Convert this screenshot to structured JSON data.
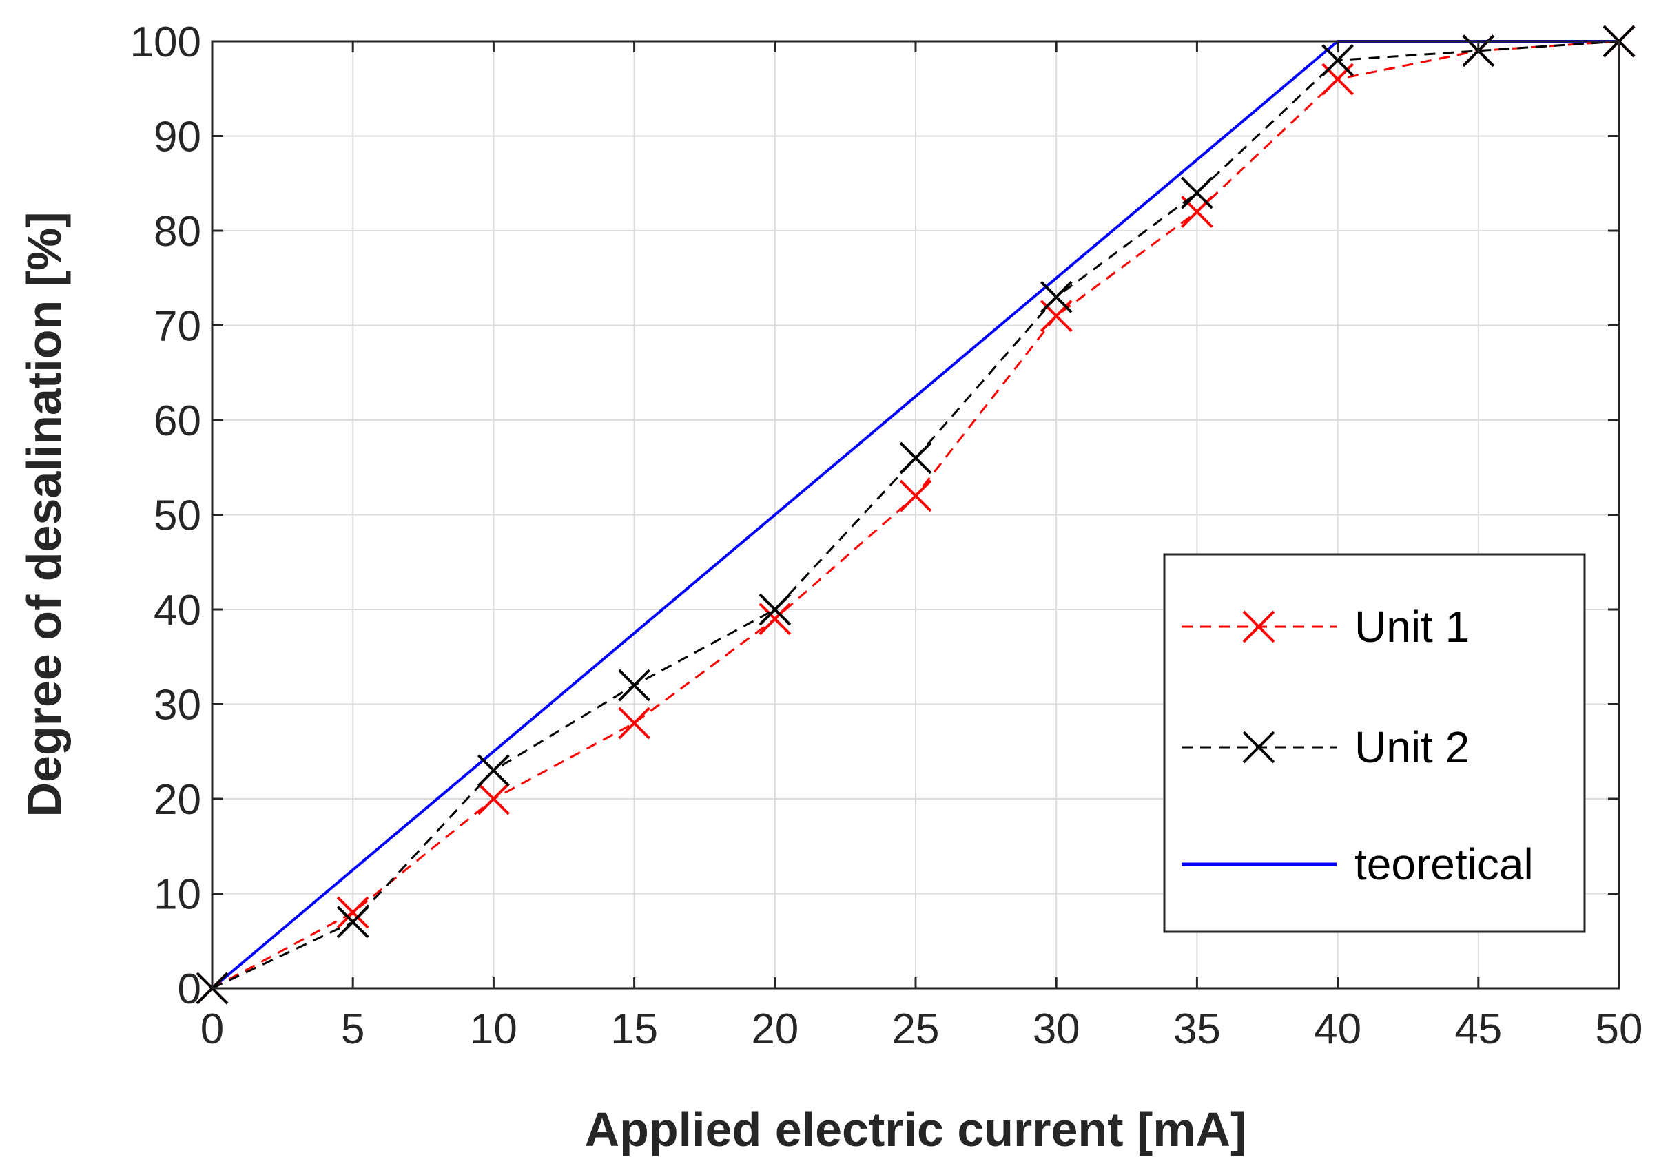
{
  "chart_data": {
    "type": "line",
    "title": "",
    "xlabel": "Applied electric current [mA]",
    "ylabel": "Degree of desalination [%]",
    "xlim": [
      0,
      50
    ],
    "ylim": [
      0,
      100
    ],
    "xticks": [
      0,
      5,
      10,
      15,
      20,
      25,
      30,
      35,
      40,
      45,
      50
    ],
    "yticks": [
      0,
      10,
      20,
      30,
      40,
      50,
      60,
      70,
      80,
      90,
      100
    ],
    "grid": true,
    "legend_position": "bottom-right",
    "series": [
      {
        "name": "Unit 1",
        "color": "#ff0000",
        "line_style": "dashed",
        "marker": "x",
        "x": [
          0,
          5,
          10,
          15,
          20,
          25,
          30,
          35,
          40,
          45,
          50
        ],
        "y": [
          0,
          8,
          20,
          28,
          39,
          52,
          71,
          82,
          96,
          99,
          100
        ]
      },
      {
        "name": "Unit 2",
        "color": "#000000",
        "line_style": "dashed",
        "marker": "x",
        "x": [
          0,
          5,
          10,
          15,
          20,
          25,
          30,
          35,
          40,
          45,
          50
        ],
        "y": [
          0,
          7,
          23,
          32,
          40,
          56,
          73,
          84,
          98,
          99,
          100
        ]
      },
      {
        "name": "teoretical",
        "color": "#0000ff",
        "line_style": "solid",
        "marker": "none",
        "x": [
          0,
          40,
          50
        ],
        "y": [
          0,
          100,
          100
        ]
      }
    ]
  }
}
